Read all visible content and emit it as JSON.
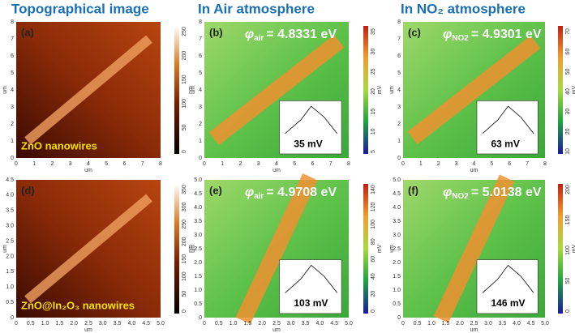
{
  "headers": [
    "Topographical image",
    "In Air atmosphere",
    "In NO₂ atmosphere"
  ],
  "panels": [
    {
      "label": "(a)",
      "caption": "ZnO nanowires",
      "kind": "topo",
      "xticks": [
        "0",
        "1",
        "2",
        "3",
        "4",
        "5",
        "6",
        "7",
        "8"
      ],
      "yticks": [
        "0",
        "1",
        "2",
        "3",
        "4",
        "5",
        "6",
        "7",
        "8"
      ],
      "xlabel": "um",
      "ylabel": "um",
      "cbar_ticks": [
        "0",
        "50",
        "100",
        "150",
        "200",
        "250"
      ],
      "cbar_unit": "nm"
    },
    {
      "label": "(b)",
      "phi": {
        "symbol": "φ",
        "sub": "air",
        "value": "= 4.8331 eV"
      },
      "inset": "35 mV",
      "kind": "kpfm",
      "xticks": [
        "0",
        "1",
        "2",
        "3",
        "4",
        "5",
        "6",
        "7",
        "8"
      ],
      "yticks": [
        "0",
        "1",
        "2",
        "3",
        "4",
        "5",
        "6",
        "7",
        "8"
      ],
      "xlabel": "um",
      "ylabel": "um",
      "cbar_ticks": [
        "5",
        "10",
        "15",
        "20",
        "25",
        "30",
        "35"
      ],
      "cbar_unit": "mV"
    },
    {
      "label": "(c)",
      "phi": {
        "symbol": "φ",
        "sub": "NO2",
        "value": "= 4.9301 eV"
      },
      "inset": "63 mV",
      "kind": "kpfm",
      "xticks": [
        "0",
        "1",
        "2",
        "3",
        "4",
        "5",
        "6",
        "7",
        "8"
      ],
      "yticks": [
        "0",
        "1",
        "2",
        "3",
        "4",
        "5",
        "6",
        "7",
        "8"
      ],
      "xlabel": "um",
      "ylabel": "um",
      "cbar_ticks": [
        "10",
        "20",
        "30",
        "40",
        "50",
        "60",
        "70"
      ],
      "cbar_unit": "mV"
    },
    {
      "label": "(d)",
      "caption": "ZnO@In₂O₃ nanowires",
      "kind": "topo",
      "xticks": [
        "0",
        "0.5",
        "1.0",
        "1.5",
        "2.0",
        "2.5",
        "3.0",
        "3.5",
        "4.0",
        "4.5",
        "5.0"
      ],
      "yticks": [
        "0",
        "0.5",
        "1.0",
        "1.5",
        "2.0",
        "2.5",
        "3.0",
        "3.5",
        "4.0",
        "4.5"
      ],
      "xlabel": "um",
      "ylabel": "um",
      "cbar_ticks": [
        "0",
        "50",
        "100",
        "150",
        "200",
        "250",
        "300",
        "350"
      ],
      "cbar_unit": "nm"
    },
    {
      "label": "(e)",
      "phi": {
        "symbol": "φ",
        "sub": "air",
        "value": "= 4.9708 eV"
      },
      "inset": "103 mV",
      "kind": "kpfm",
      "xticks": [
        "0",
        "0.5",
        "1.0",
        "1.5",
        "2.0",
        "2.5",
        "3.0",
        "3.5",
        "4.0",
        "4.5",
        "5.0"
      ],
      "yticks": [
        "0",
        "0.5",
        "1.0",
        "1.5",
        "2.0",
        "2.5",
        "3.0",
        "3.5",
        "4.0",
        "4.5",
        "5.0"
      ],
      "xlabel": "um",
      "ylabel": "um",
      "cbar_ticks": [
        "0",
        "20",
        "40",
        "60",
        "80",
        "100",
        "120",
        "140"
      ],
      "cbar_unit": "mV"
    },
    {
      "label": "(f)",
      "phi": {
        "symbol": "φ",
        "sub": "NO2",
        "value": "= 5.0138 eV"
      },
      "inset": "146 mV",
      "kind": "kpfm",
      "xticks": [
        "0",
        "0.5",
        "1.0",
        "1.5",
        "2.0",
        "2.5",
        "3.0",
        "3.5",
        "4.0",
        "4.5",
        "5.0"
      ],
      "yticks": [
        "0",
        "0.5",
        "1.0",
        "1.5",
        "2.0",
        "2.5",
        "3.0",
        "3.5",
        "4.0",
        "4.5",
        "5.0"
      ],
      "xlabel": "um",
      "ylabel": "um",
      "cbar_ticks": [
        "0",
        "50",
        "100",
        "150",
        "200"
      ],
      "cbar_unit": "mV"
    }
  ]
}
